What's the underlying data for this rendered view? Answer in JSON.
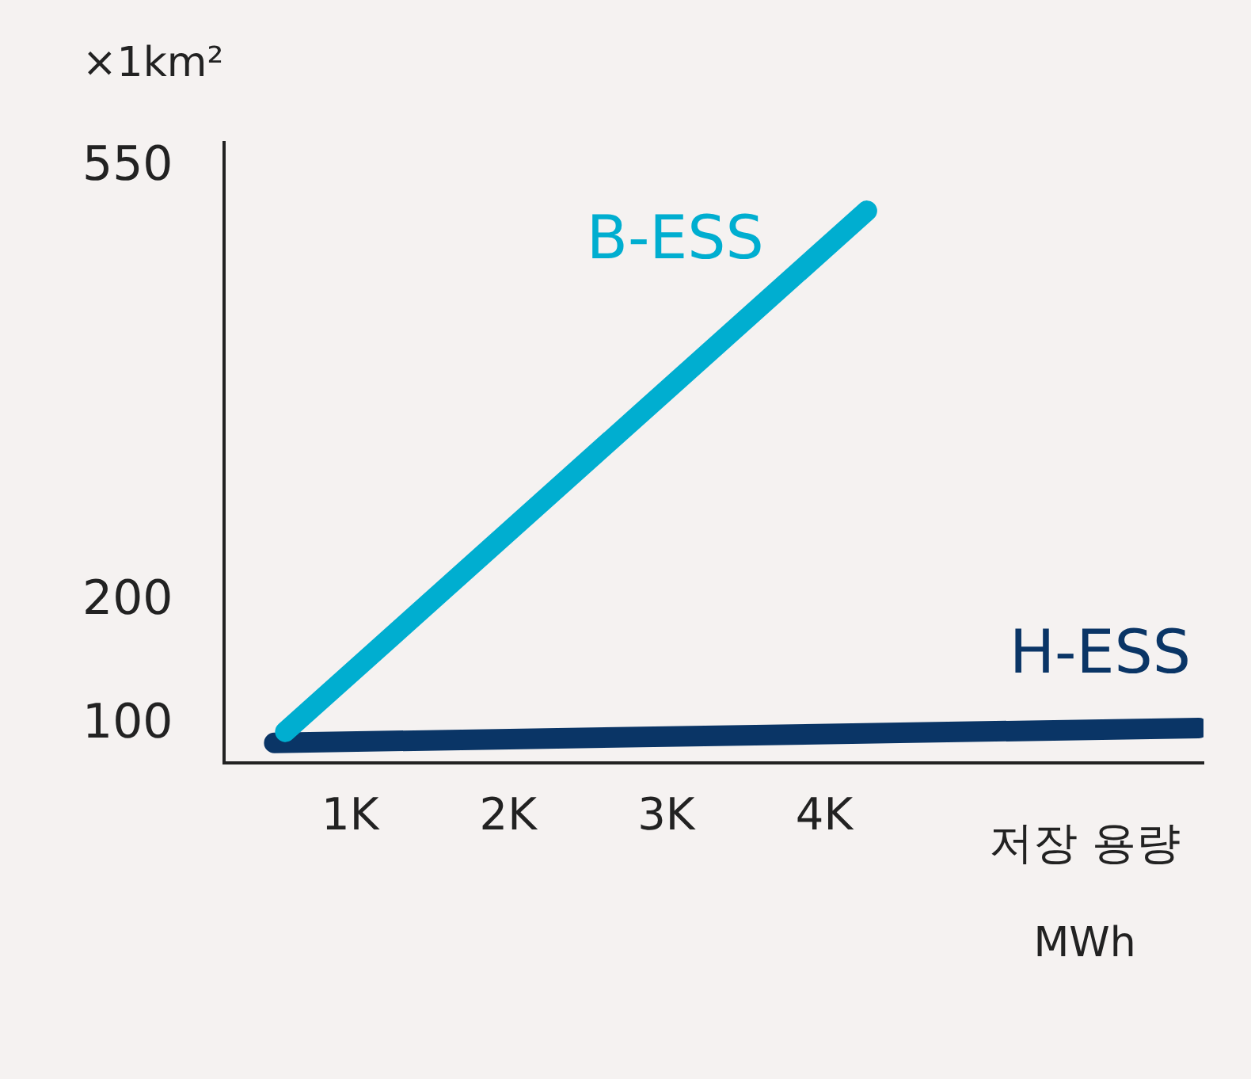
{
  "chart_data": {
    "type": "line",
    "ylabel": "×1km²",
    "xlabel": "저장 용량",
    "annotations": [
      "MWh"
    ],
    "xlim": [
      200,
      6400
    ],
    "xticks": [
      {
        "value": 1000,
        "label": "1K"
      },
      {
        "value": 2000,
        "label": "2K"
      },
      {
        "value": 3000,
        "label": "3K"
      },
      {
        "value": 4000,
        "label": "4K"
      }
    ],
    "ylim": [
      70,
      570
    ],
    "yticks": [
      100,
      200,
      550
    ],
    "grid": false,
    "legend": false,
    "marker": "none",
    "line_style": "solid",
    "series": [
      {
        "name": "B-ESS",
        "color": "#00aed0",
        "x": [
          590,
          4270
        ],
        "values": [
          95,
          515
        ]
      },
      {
        "name": "H-ESS",
        "color": "#0a3566",
        "x": [
          520,
          6370
        ],
        "values": [
          86,
          98
        ]
      }
    ]
  }
}
